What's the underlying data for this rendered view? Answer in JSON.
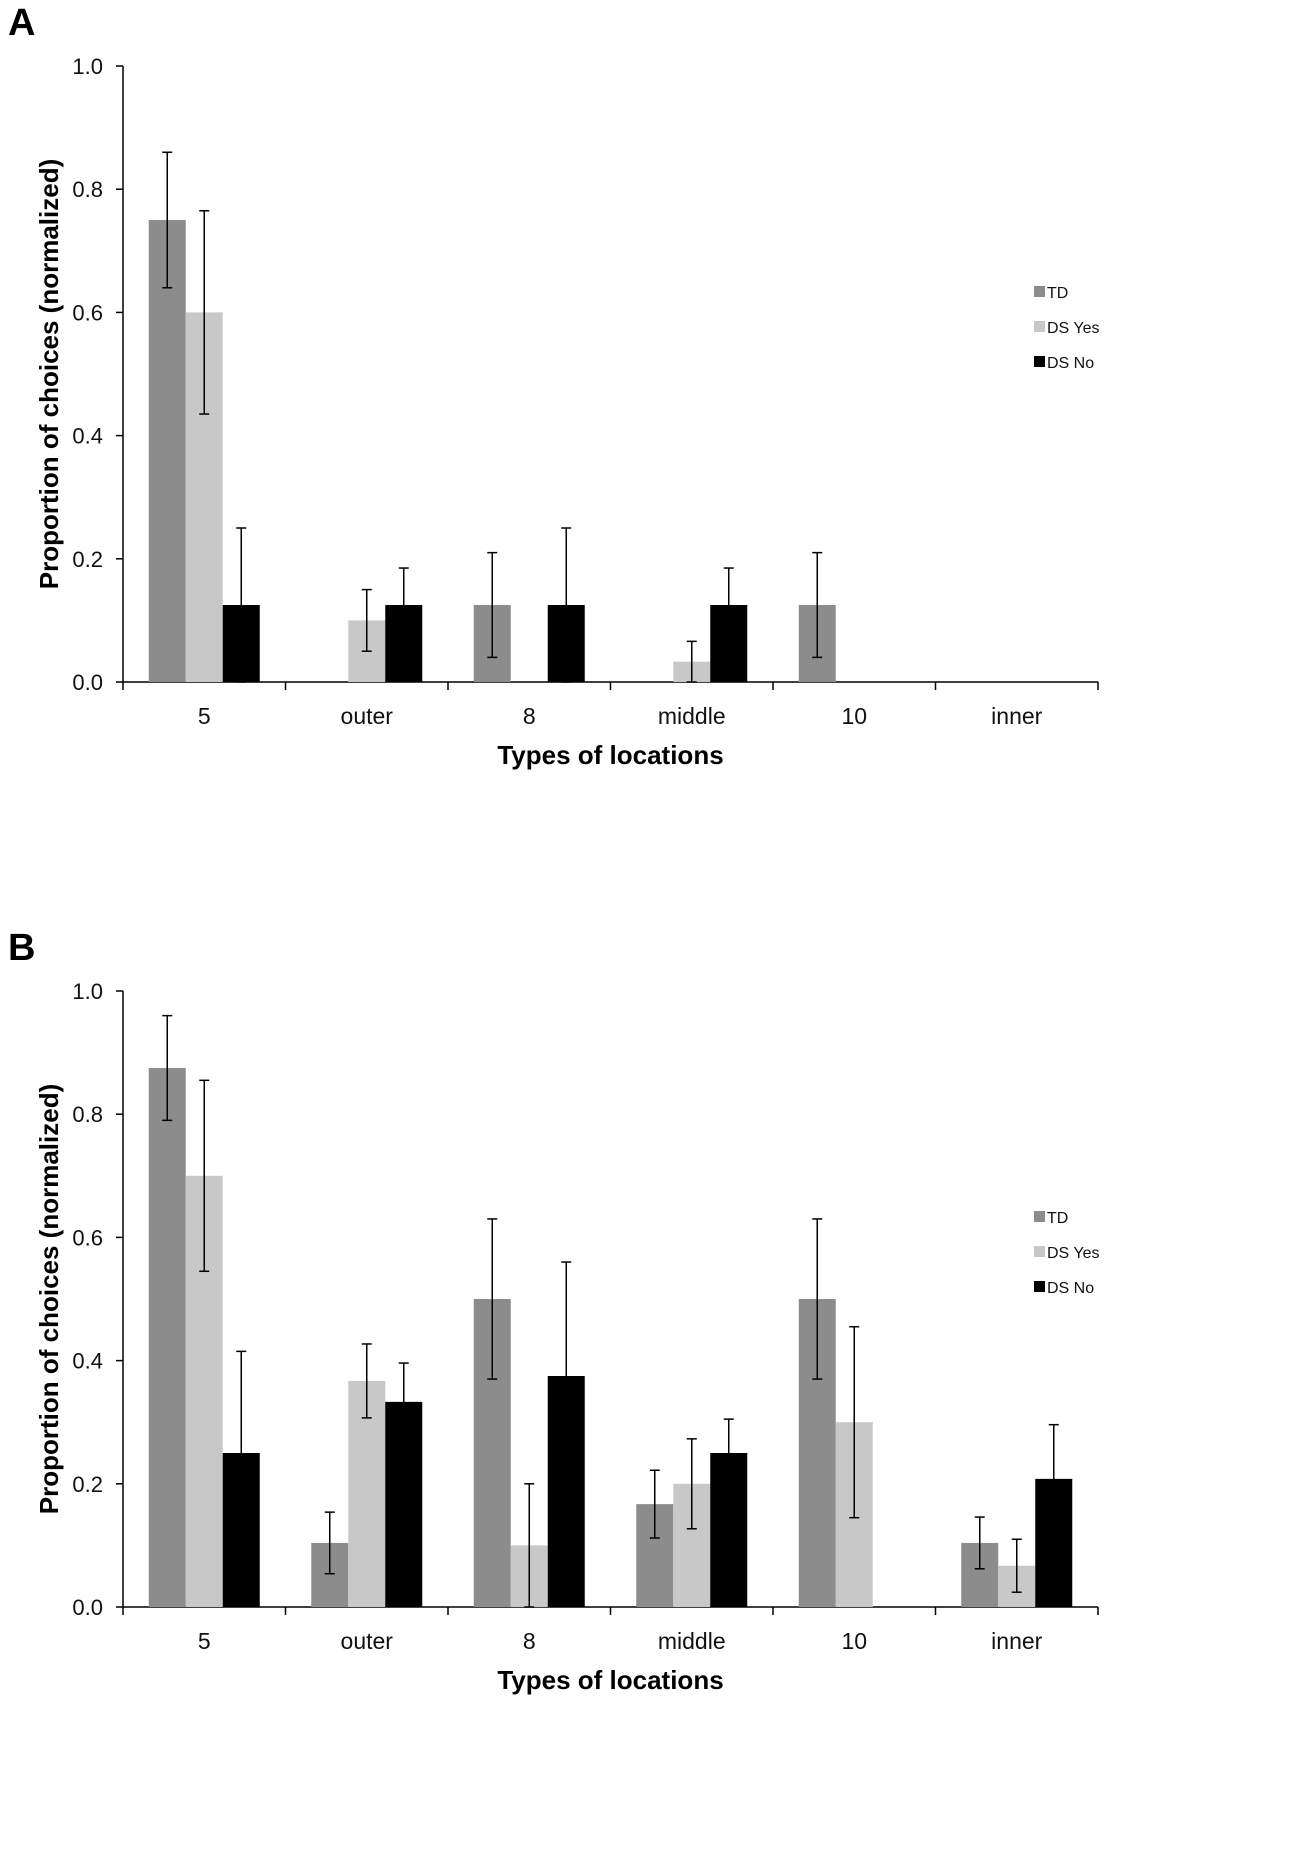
{
  "chart_data": [
    {
      "panel": "A",
      "type": "bar",
      "categories": [
        "5",
        "outer",
        "8",
        "middle",
        "10",
        "inner"
      ],
      "xlabel": "Types of locations",
      "ylabel": "Proportion of choices (normalized)",
      "ylim": [
        0,
        1
      ],
      "yticks": [
        "0.0",
        "0.2",
        "0.4",
        "0.6",
        "0.8",
        "1.0"
      ],
      "legend_position": "right",
      "series": [
        {
          "name": "TD",
          "color": "#8c8c8c",
          "values": [
            0.75,
            0,
            0.125,
            0,
            0.125,
            0
          ],
          "err": [
            0.11,
            0,
            0.085,
            0,
            0.085,
            0
          ]
        },
        {
          "name": "DS Yes",
          "color": "#c8c8c8",
          "values": [
            0.6,
            0.1,
            0,
            0.033,
            0,
            0
          ],
          "err": [
            0.165,
            0.05,
            0,
            0.033,
            0,
            0
          ]
        },
        {
          "name": "DS No",
          "color": "#000000",
          "values": [
            0.125,
            0.125,
            0.125,
            0.125,
            0,
            0
          ],
          "err": [
            0.125,
            0.06,
            0.125,
            0.06,
            0,
            0
          ]
        }
      ]
    },
    {
      "panel": "B",
      "type": "bar",
      "categories": [
        "5",
        "outer",
        "8",
        "middle",
        "10",
        "inner"
      ],
      "xlabel": "Types of locations",
      "ylabel": "Proportion of choices (normalized)",
      "ylim": [
        0,
        1
      ],
      "yticks": [
        "0.0",
        "0.2",
        "0.4",
        "0.6",
        "0.8",
        "1.0"
      ],
      "legend_position": "right",
      "series": [
        {
          "name": "TD",
          "color": "#8c8c8c",
          "values": [
            0.875,
            0.104,
            0.5,
            0.167,
            0.5,
            0.104
          ],
          "err": [
            0.085,
            0.05,
            0.13,
            0.055,
            0.13,
            0.042
          ]
        },
        {
          "name": "DS Yes",
          "color": "#c8c8c8",
          "values": [
            0.7,
            0.367,
            0.1,
            0.2,
            0.3,
            0.067
          ],
          "err": [
            0.155,
            0.06,
            0.1,
            0.073,
            0.155,
            0.043
          ]
        },
        {
          "name": "DS No",
          "color": "#000000",
          "values": [
            0.25,
            0.333,
            0.375,
            0.25,
            0,
            0.208
          ],
          "err": [
            0.165,
            0.063,
            0.185,
            0.055,
            0,
            0.088
          ]
        }
      ]
    }
  ],
  "panels": {
    "a_label": "A",
    "b_label": "B"
  }
}
